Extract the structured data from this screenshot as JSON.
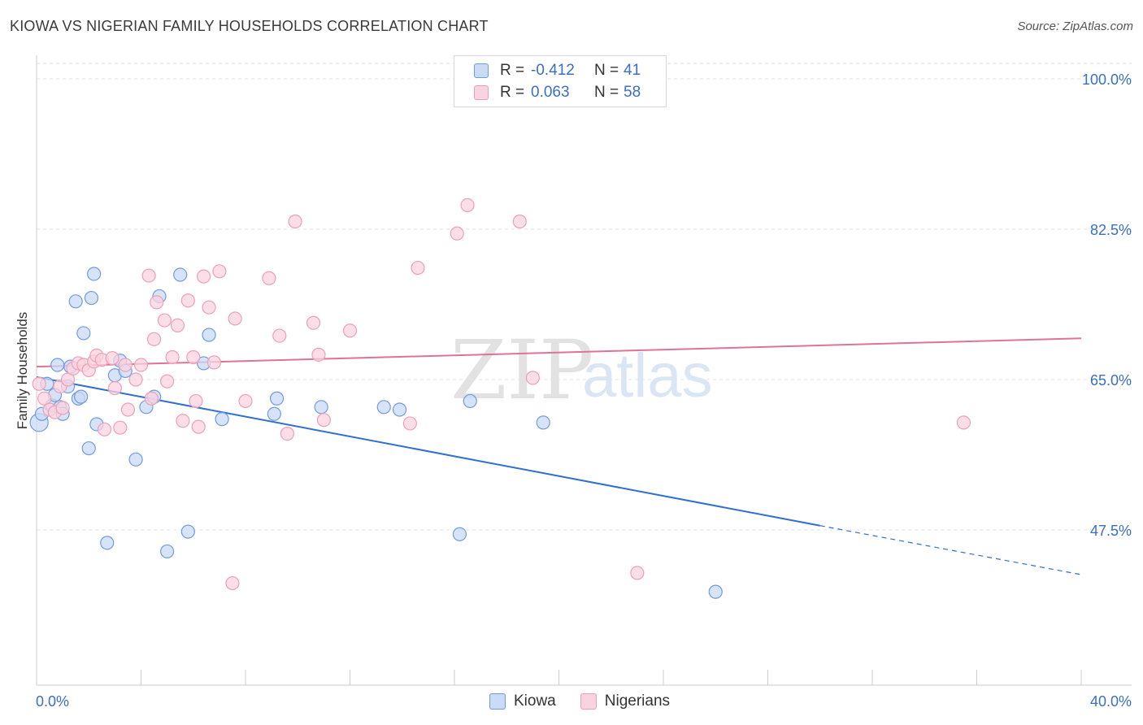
{
  "title": "KIOWA VS NIGERIAN FAMILY HOUSEHOLDS CORRELATION CHART",
  "source": "Source: ZipAtlas.com",
  "watermark": {
    "zip": "ZIP",
    "atlas": "atlas"
  },
  "legend": {
    "rows": [
      {
        "r_label": "R =",
        "r_value": "-0.412",
        "n_label": "N =",
        "n_value": "41",
        "color": "#8fb4e8"
      },
      {
        "r_label": "R =",
        "r_value": "0.063",
        "n_label": "N =",
        "n_value": "58",
        "color": "#f2a6be"
      }
    ]
  },
  "bottom_legend": [
    "Kiowa",
    "Nigerians"
  ],
  "chart_data": {
    "type": "scatter",
    "title": "KIOWA VS NIGERIAN FAMILY HOUSEHOLDS CORRELATION CHART",
    "xlabel": "",
    "ylabel": "Family Households",
    "xlim": [
      0,
      40
    ],
    "ylim": [
      30,
      100
    ],
    "x_tick_labels": [
      "0.0%",
      "40.0%"
    ],
    "y_ticks": [
      47.5,
      65.0,
      82.5,
      100.0
    ],
    "y_tick_labels": [
      "47.5%",
      "65.0%",
      "82.5%",
      "100.0%"
    ],
    "grid": true,
    "colors": {
      "kiowa_fill": "#c9dbf5",
      "kiowa_stroke": "#6f9be0",
      "kiowa_line": "#2f6fd0",
      "nig_fill": "#f9d3df",
      "nig_stroke": "#ee9fb8",
      "nig_line": "#e0729a",
      "axis_label": "#3a6fc4"
    },
    "series": [
      {
        "name": "Kiowa",
        "trend": {
          "x0": 0.0,
          "y0": 65.3,
          "x1": 30.0,
          "y1": 48.0,
          "dash_to_x": 40.0,
          "dash_to_y": 42.3
        },
        "points": [
          [
            0.1,
            60.0
          ],
          [
            0.2,
            61.0
          ],
          [
            0.4,
            64.5
          ],
          [
            0.6,
            62.0
          ],
          [
            0.7,
            63.2
          ],
          [
            0.8,
            66.7
          ],
          [
            0.9,
            61.8
          ],
          [
            1.0,
            61.0
          ],
          [
            1.2,
            64.2
          ],
          [
            1.3,
            66.5
          ],
          [
            1.5,
            74.1
          ],
          [
            1.6,
            62.8
          ],
          [
            1.7,
            63.0
          ],
          [
            1.8,
            70.4
          ],
          [
            2.0,
            57.0
          ],
          [
            2.1,
            74.5
          ],
          [
            2.2,
            77.3
          ],
          [
            2.3,
            59.8
          ],
          [
            2.7,
            46.0
          ],
          [
            3.0,
            65.5
          ],
          [
            3.2,
            67.2
          ],
          [
            3.4,
            66.0
          ],
          [
            3.8,
            55.7
          ],
          [
            4.2,
            61.8
          ],
          [
            4.5,
            63.0
          ],
          [
            4.7,
            74.7
          ],
          [
            5.0,
            45.0
          ],
          [
            5.5,
            77.2
          ],
          [
            5.8,
            47.3
          ],
          [
            6.4,
            66.9
          ],
          [
            6.6,
            70.2
          ],
          [
            7.1,
            60.4
          ],
          [
            9.1,
            61.0
          ],
          [
            9.2,
            62.8
          ],
          [
            10.9,
            61.8
          ],
          [
            13.3,
            61.8
          ],
          [
            13.9,
            61.5
          ],
          [
            16.2,
            47.0
          ],
          [
            16.6,
            62.5
          ],
          [
            19.4,
            60.0
          ],
          [
            26.0,
            40.3
          ]
        ]
      },
      {
        "name": "Nigerians",
        "trend": {
          "x0": 0.0,
          "y0": 66.5,
          "x1": 40.0,
          "y1": 69.8
        },
        "points": [
          [
            0.1,
            64.5
          ],
          [
            0.3,
            62.8
          ],
          [
            0.5,
            61.5
          ],
          [
            0.7,
            61.2
          ],
          [
            0.9,
            64.2
          ],
          [
            1.0,
            61.7
          ],
          [
            1.2,
            65.0
          ],
          [
            1.4,
            66.3
          ],
          [
            1.6,
            66.9
          ],
          [
            1.8,
            66.7
          ],
          [
            2.0,
            66.1
          ],
          [
            2.2,
            67.1
          ],
          [
            2.3,
            67.8
          ],
          [
            2.5,
            67.3
          ],
          [
            2.6,
            59.2
          ],
          [
            2.9,
            67.5
          ],
          [
            3.0,
            64.0
          ],
          [
            3.2,
            59.4
          ],
          [
            3.4,
            66.7
          ],
          [
            3.5,
            61.5
          ],
          [
            3.8,
            65.0
          ],
          [
            4.0,
            66.7
          ],
          [
            4.3,
            77.1
          ],
          [
            4.4,
            62.8
          ],
          [
            4.5,
            69.7
          ],
          [
            4.6,
            74.0
          ],
          [
            4.9,
            71.9
          ],
          [
            5.0,
            64.8
          ],
          [
            5.2,
            67.6
          ],
          [
            5.4,
            71.3
          ],
          [
            5.6,
            60.2
          ],
          [
            5.8,
            74.2
          ],
          [
            6.0,
            67.6
          ],
          [
            6.1,
            62.5
          ],
          [
            6.2,
            59.5
          ],
          [
            6.4,
            77.0
          ],
          [
            6.6,
            73.4
          ],
          [
            6.8,
            67.0
          ],
          [
            7.0,
            77.6
          ],
          [
            7.5,
            41.3
          ],
          [
            7.6,
            72.1
          ],
          [
            8.0,
            62.5
          ],
          [
            8.9,
            76.8
          ],
          [
            9.3,
            70.1
          ],
          [
            9.6,
            58.7
          ],
          [
            9.9,
            83.4
          ],
          [
            10.6,
            71.6
          ],
          [
            10.8,
            67.9
          ],
          [
            11.0,
            60.3
          ],
          [
            12.0,
            70.7
          ],
          [
            14.3,
            59.9
          ],
          [
            14.6,
            78.0
          ],
          [
            16.1,
            82.0
          ],
          [
            16.5,
            85.3
          ],
          [
            18.5,
            83.4
          ],
          [
            19.0,
            65.2
          ],
          [
            23.0,
            42.5
          ],
          [
            35.5,
            60.0
          ]
        ]
      }
    ]
  }
}
